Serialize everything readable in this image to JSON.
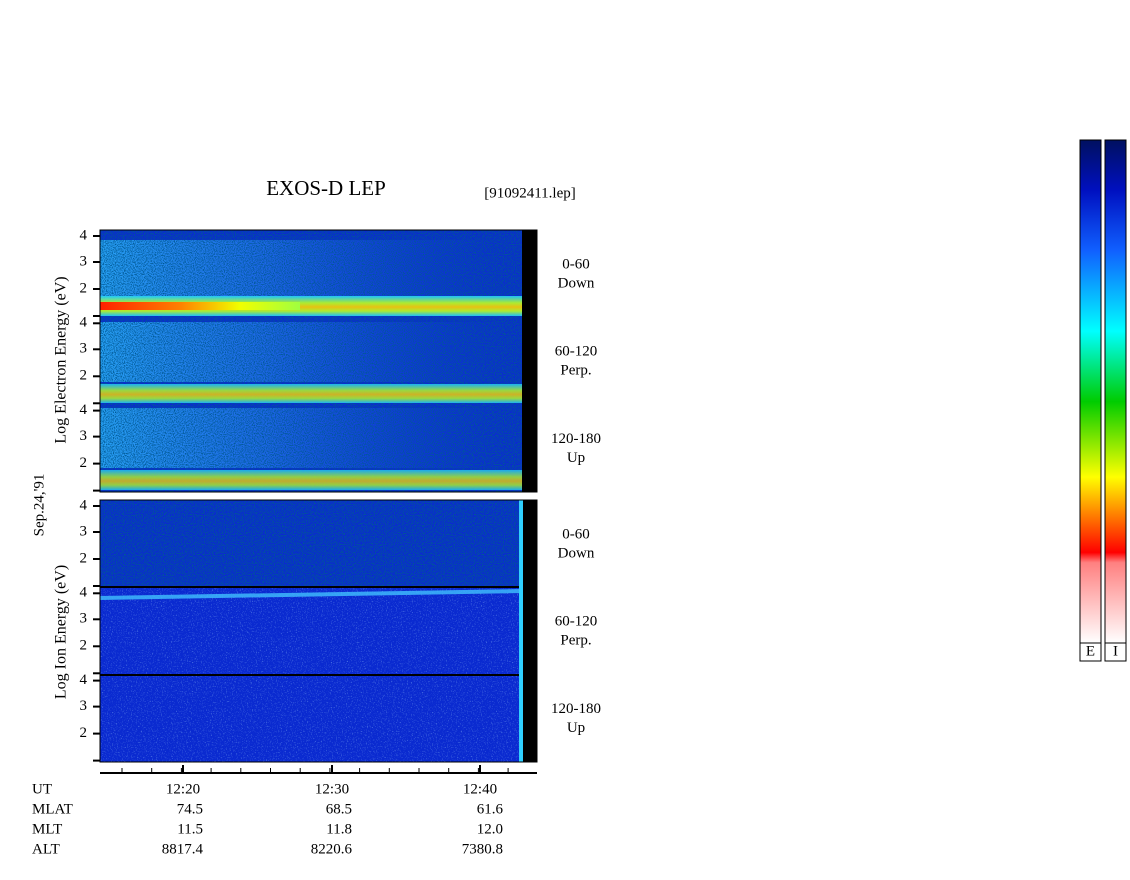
{
  "header": {
    "title": "EXOS-D LEP",
    "file": "[91092411.lep]"
  },
  "date": "Sep.24,'91",
  "electron": {
    "axis_label": "Log Electron Energy (eV)",
    "panels": [
      {
        "ticks": [
          "4",
          "3",
          "2"
        ],
        "pitch": "0-60",
        "direction": "Down"
      },
      {
        "ticks": [
          "4",
          "3",
          "2"
        ],
        "pitch": "60-120",
        "direction": "Perp."
      },
      {
        "ticks": [
          "4",
          "3",
          "2"
        ],
        "pitch": "120-180",
        "direction": "Up"
      }
    ]
  },
  "ion": {
    "axis_label": "Log Ion Energy (eV)",
    "panels": [
      {
        "ticks": [
          "4",
          "3",
          "2"
        ],
        "pitch": "0-60",
        "direction": "Down"
      },
      {
        "ticks": [
          "4",
          "3",
          "2"
        ],
        "pitch": "60-120",
        "direction": "Perp."
      },
      {
        "ticks": [
          "4",
          "3",
          "2"
        ],
        "pitch": "120-180",
        "direction": "Up"
      }
    ]
  },
  "time_axis": {
    "label": "UT",
    "ticks": [
      "12:20",
      "12:30",
      "12:40"
    ]
  },
  "table": {
    "rows": [
      [
        "MLAT",
        "74.5",
        "68.5",
        "61.6"
      ],
      [
        "MLT",
        "11.5",
        "11.8",
        "12.0"
      ],
      [
        "ALT",
        "8817.4",
        "8220.6",
        "7380.8"
      ]
    ]
  },
  "colorbars": [
    "E",
    "I"
  ]
}
